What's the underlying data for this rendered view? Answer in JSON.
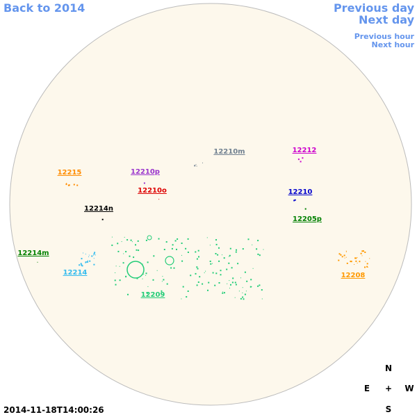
{
  "nav": {
    "back": "Back to 2014",
    "previous_day": "Previous day",
    "next_day": "Next day",
    "previous_hour": "Previous hour",
    "next_hour": "Next hour"
  },
  "regions": [
    {
      "label": "12210m",
      "color": "#708090"
    },
    {
      "label": "12212",
      "color": "#cc00cc"
    },
    {
      "label": "12215",
      "color": "#ff8c00"
    },
    {
      "label": "12210p",
      "color": "#9933cc"
    },
    {
      "label": "12210o",
      "color": "#dd0000"
    },
    {
      "label": "12210",
      "color": "#0000cc"
    },
    {
      "label": "12214n",
      "color": "#000000"
    },
    {
      "label": "12205p",
      "color": "#008000"
    },
    {
      "label": "12214m",
      "color": "#008000"
    },
    {
      "label": "12214",
      "color": "#33bbee"
    },
    {
      "label": "12209",
      "color": "#22cc77"
    },
    {
      "label": "12208",
      "color": "#ff9900"
    }
  ],
  "compass": {
    "north": "N",
    "east": "E",
    "center": "+",
    "west": "W",
    "south": "S"
  },
  "timestamp": "2014-11-18T14:00:26"
}
